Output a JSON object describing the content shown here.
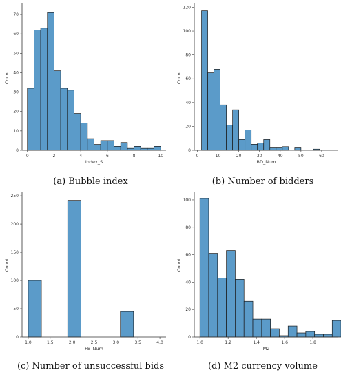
{
  "chart_data": [
    {
      "type": "bar",
      "title": "",
      "caption": "(a) Bubble index",
      "xlabel": "Index_S",
      "ylabel": "Count",
      "xlim": [
        -0.4,
        10.4
      ],
      "ylim": [
        0,
        75
      ],
      "xticks": [
        0,
        2,
        4,
        6,
        8,
        10
      ],
      "yticks": [
        0,
        10,
        20,
        30,
        40,
        50,
        60,
        70
      ],
      "bin_start": 0.0,
      "bin_width": 0.5,
      "values": [
        32,
        62,
        63,
        71,
        41,
        32,
        31,
        19,
        14,
        6,
        3,
        5,
        5,
        2,
        4,
        1,
        2,
        1,
        1,
        2
      ]
    },
    {
      "type": "bar",
      "title": "",
      "caption": "(b) Number of bidders",
      "xlabel": "BD_Num",
      "ylabel": "Count",
      "xlim": [
        -1.5,
        68
      ],
      "ylim": [
        0,
        122
      ],
      "xticks": [
        0,
        10,
        20,
        30,
        40,
        50,
        60
      ],
      "yticks": [
        0,
        20,
        40,
        60,
        80,
        100,
        120
      ],
      "bin_start": 2.0,
      "bin_width": 3.0,
      "values": [
        117,
        65,
        68,
        38,
        21,
        34,
        9,
        17,
        5,
        6,
        9,
        2,
        2,
        3,
        0,
        2,
        0,
        0,
        1,
        0,
        0,
        0,
        0,
        1,
        0,
        1
      ]
    },
    {
      "type": "bar",
      "title": "",
      "caption": "(c) Number of unsuccessful bids",
      "xlabel": "FB_Num",
      "ylabel": "Count",
      "xlim": [
        0.86,
        4.14
      ],
      "ylim": [
        0,
        255
      ],
      "xticks": [
        1.0,
        1.5,
        2.0,
        2.5,
        3.0,
        3.5,
        4.0
      ],
      "xtick_labels": [
        "1.0",
        "1.5",
        "2.0",
        "2.5",
        "3.0",
        "3.5",
        "4.0"
      ],
      "yticks": [
        0,
        50,
        100,
        150,
        200,
        250
      ],
      "bin_start": 1.0,
      "bin_width": 0.3,
      "values": [
        100,
        0,
        0,
        242,
        0,
        0,
        0,
        45,
        0,
        0
      ]
    },
    {
      "type": "bar",
      "title": "",
      "caption": "(d) M2 currency volume",
      "xlabel": "M2",
      "ylabel": "Count",
      "xlim": [
        0.96,
        1.98
      ],
      "ylim": [
        0,
        105
      ],
      "xticks": [
        1.0,
        1.2,
        1.4,
        1.6,
        1.8
      ],
      "xtick_labels": [
        "1.0",
        "1.2",
        "1.4",
        "1.6",
        "1.8"
      ],
      "yticks": [
        0,
        20,
        40,
        60,
        80,
        100
      ],
      "bin_start": 1.0,
      "bin_width": 0.0625,
      "values": [
        101,
        61,
        43,
        63,
        42,
        26,
        13,
        13,
        6,
        1,
        8,
        3,
        4,
        2,
        2,
        12
      ]
    }
  ]
}
